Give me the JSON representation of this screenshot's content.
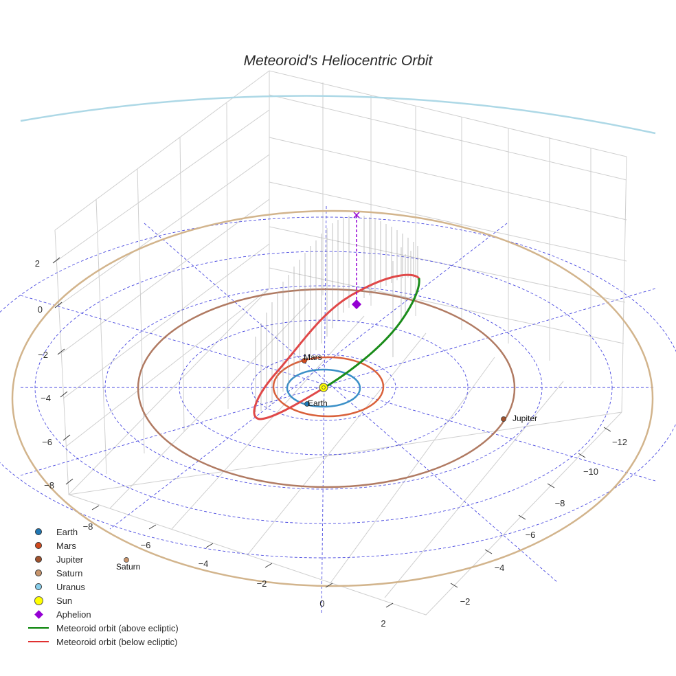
{
  "chart_data": {
    "type": "3d-orbit-plot",
    "title": "Meteoroid's Heliocentric Orbit",
    "x_ticks": [
      "−12",
      "−10",
      "−8",
      "−6",
      "−4",
      "−2"
    ],
    "y_ticks": [
      "−8",
      "−6",
      "−4",
      "−2",
      "0",
      "2"
    ],
    "z_ticks": [
      "2",
      "0",
      "−2",
      "−4",
      "−6",
      "−8"
    ],
    "planets": [
      {
        "name": "Earth",
        "label": "Earth",
        "color": "#1f77b4",
        "orbit_color": "#3a8fc7",
        "orbit_radius_au": 1.0
      },
      {
        "name": "Mars",
        "label": "Mars",
        "color": "#d24a1e",
        "orbit_color": "#d9603a",
        "orbit_radius_au": 1.52
      },
      {
        "name": "Jupiter",
        "label": "Jupiter",
        "color": "#a0522d",
        "orbit_color": "#b07a62",
        "orbit_radius_au": 5.2
      },
      {
        "name": "Saturn",
        "label": "Saturn",
        "color": "#c8956c",
        "orbit_color": "#d2b48c",
        "orbit_radius_au": 9.58
      },
      {
        "name": "Uranus",
        "label": "",
        "color": "#87ceeb",
        "orbit_color": "#add8e6",
        "orbit_radius_au": 19.2
      }
    ],
    "legend": [
      {
        "label": "Earth",
        "symbol": "dot",
        "color": "#1f77b4"
      },
      {
        "label": "Mars",
        "symbol": "dot",
        "color": "#d24a1e"
      },
      {
        "label": "Jupiter",
        "symbol": "dot",
        "color": "#a0522d"
      },
      {
        "label": "Saturn",
        "symbol": "dot",
        "color": "#c8956c"
      },
      {
        "label": "Uranus",
        "symbol": "dot",
        "color": "#87ceeb"
      },
      {
        "label": "Sun",
        "symbol": "sun",
        "color": "#ffff00"
      },
      {
        "label": "Aphelion",
        "symbol": "diamond",
        "color": "#9400d3"
      },
      {
        "label": "Meteoroid orbit (above ecliptic)",
        "symbol": "line",
        "color": "#008000"
      },
      {
        "label": "Meteoroid orbit (below ecliptic)",
        "symbol": "line",
        "color": "#e03030"
      }
    ],
    "meteoroid_orbit": {
      "above_color": "#1a8c1a",
      "below_color": "#e04848",
      "aphelion_color": "#9400d3"
    },
    "reference_circles_color": "#4a4ae0",
    "legend_placement": "bottom-left"
  }
}
